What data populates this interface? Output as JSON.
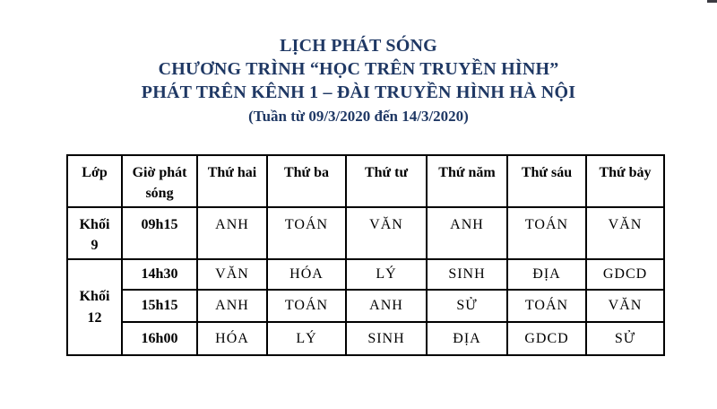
{
  "title": {
    "line1": "LỊCH PHÁT SÓNG",
    "line2": "CHƯƠNG TRÌNH “HỌC TRÊN TRUYỀN HÌNH”",
    "line3": "PHÁT TRÊN KÊNH 1 – ĐÀI TRUYỀN HÌNH HÀ NỘI",
    "line4": "(Tuần từ 09/3/2020 đến 14/3/2020)"
  },
  "colors": {
    "title": "#1f3864",
    "text": "#000000",
    "border": "#000000",
    "background": "#ffffff"
  },
  "table": {
    "headers": [
      "Lớp",
      "Giờ phát sóng",
      "Thứ hai",
      "Thứ ba",
      "Thứ tư",
      "Thứ năm",
      "Thứ sáu",
      "Thứ bảy"
    ],
    "groups": [
      {
        "class_label": "Khối 9",
        "rows": [
          {
            "time": "09h15",
            "subjects": [
              "ANH",
              "TOÁN",
              "VĂN",
              "ANH",
              "TOÁN",
              "VĂN"
            ]
          }
        ]
      },
      {
        "class_label": "Khối 12",
        "rows": [
          {
            "time": "14h30",
            "subjects": [
              "VĂN",
              "HÓA",
              "LÝ",
              "SINH",
              "ĐỊA",
              "GDCD"
            ]
          },
          {
            "time": "15h15",
            "subjects": [
              "ANH",
              "TOÁN",
              "ANH",
              "SỬ",
              "TOÁN",
              "VĂN"
            ]
          },
          {
            "time": "16h00",
            "subjects": [
              "HÓA",
              "LÝ",
              "SINH",
              "ĐỊA",
              "GDCD",
              "SỬ"
            ]
          }
        ]
      }
    ]
  }
}
